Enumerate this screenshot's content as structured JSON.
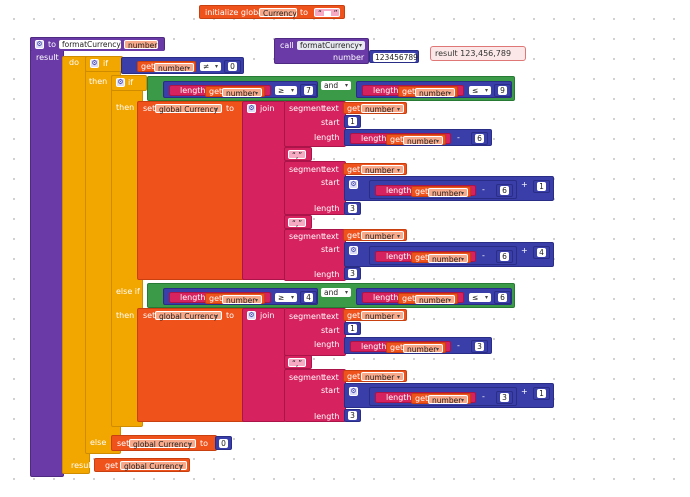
{
  "init": {
    "prefix": "initialize global",
    "var": "Currency",
    "to": "to",
    "value": " "
  },
  "proc": {
    "to": "to",
    "name": "formatCurrency",
    "param": "number",
    "result": "result"
  },
  "call": {
    "label": "call",
    "name": "formatCurrency",
    "param": "number",
    "value": "123456789",
    "result": "result 123,456,789"
  },
  "kw": {
    "do": "do",
    "if": "if",
    "then": "then",
    "else_if": "else if",
    "else": "else",
    "result": "result",
    "get": "get",
    "set": "set",
    "to": "to",
    "join": "join",
    "length": "length",
    "and": "and",
    "segment": "segment",
    "text": "text",
    "start": "start",
    "length_label": "length",
    "minus": "-",
    "plus": "+",
    "neq": "≠",
    "gte": "≥",
    "lte": "≤",
    "comma": ","
  },
  "vars": {
    "number": "number",
    "currency": "global Currency"
  },
  "nums": {
    "zero": "0",
    "one": "1",
    "three": "3",
    "four": "4",
    "six": "6",
    "seven": "7",
    "nine": "9"
  }
}
